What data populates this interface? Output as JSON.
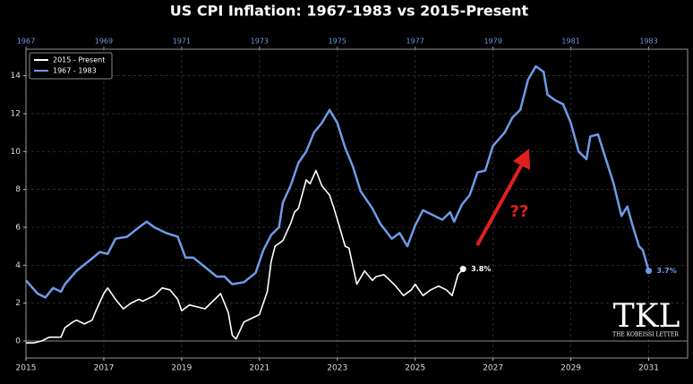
{
  "chart_data": {
    "type": "line",
    "title": "US CPI Inflation: 1967-1983 vs 2015-Present",
    "xlim": [
      2015,
      2032
    ],
    "xticks": [
      2015,
      2017,
      2019,
      2021,
      2023,
      2025,
      2027,
      2029,
      2031
    ],
    "x2lim": [
      1967,
      1984
    ],
    "x2ticks": [
      1967,
      1969,
      1971,
      1973,
      1975,
      1977,
      1979,
      1981,
      1983
    ],
    "ylim": [
      -0.9,
      15.4
    ],
    "yticks": [
      0,
      2,
      4,
      6,
      8,
      10,
      12,
      14
    ],
    "grid": true,
    "hline": 0,
    "legend": "upper left",
    "series": [
      {
        "name": "2015 - Present",
        "color": "#ffffff",
        "axis": "x",
        "end_label": "3.8%",
        "x": [
          2015.0,
          2015.2,
          2015.4,
          2015.6,
          2015.9,
          2016.0,
          2016.2,
          2016.3,
          2016.5,
          2016.7,
          2016.8,
          2017.0,
          2017.1,
          2017.3,
          2017.5,
          2017.7,
          2017.9,
          2018.0,
          2018.3,
          2018.5,
          2018.7,
          2018.9,
          2019.0,
          2019.2,
          2019.4,
          2019.6,
          2019.8,
          2020.0,
          2020.2,
          2020.3,
          2020.4,
          2020.6,
          2020.8,
          2021.0,
          2021.2,
          2021.3,
          2021.4,
          2021.6,
          2021.8,
          2021.9,
          2022.0,
          2022.2,
          2022.3,
          2022.45,
          2022.6,
          2022.8,
          2022.9,
          2023.0,
          2023.2,
          2023.3,
          2023.5,
          2023.7,
          2023.9,
          2024.0,
          2024.2,
          2024.3,
          2024.5,
          2024.7,
          2024.9,
          2025.0,
          2025.2,
          2025.4,
          2025.6,
          2025.8,
          2025.95,
          2026.1,
          2026.23
        ],
        "values": [
          -0.1,
          -0.1,
          0.0,
          0.2,
          0.2,
          0.7,
          1.0,
          1.1,
          0.9,
          1.1,
          1.6,
          2.5,
          2.8,
          2.2,
          1.7,
          2.0,
          2.2,
          2.1,
          2.4,
          2.8,
          2.7,
          2.2,
          1.6,
          1.9,
          1.8,
          1.7,
          2.1,
          2.5,
          1.5,
          0.3,
          0.1,
          1.0,
          1.2,
          1.4,
          2.6,
          4.2,
          5.0,
          5.3,
          6.2,
          6.8,
          7.0,
          8.5,
          8.3,
          9.0,
          8.2,
          7.7,
          7.1,
          6.4,
          5.0,
          4.9,
          3.0,
          3.7,
          3.2,
          3.4,
          3.5,
          3.3,
          2.9,
          2.4,
          2.7,
          3.0,
          2.4,
          2.7,
          2.9,
          2.7,
          2.4,
          3.5,
          3.8
        ]
      },
      {
        "name": "1967 - 1983",
        "color": "#6f9be6",
        "axis": "x2",
        "end_label": "3.7%",
        "x": [
          1967.0,
          1967.3,
          1967.5,
          1967.7,
          1967.9,
          1968.0,
          1968.3,
          1968.6,
          1968.9,
          1969.1,
          1969.3,
          1969.6,
          1969.9,
          1970.1,
          1970.3,
          1970.6,
          1970.9,
          1971.1,
          1971.3,
          1971.6,
          1971.9,
          1972.1,
          1972.3,
          1972.6,
          1972.9,
          1973.1,
          1973.3,
          1973.5,
          1973.6,
          1973.8,
          1974.0,
          1974.2,
          1974.4,
          1974.6,
          1974.8,
          1975.0,
          1975.2,
          1975.4,
          1975.6,
          1975.9,
          1976.1,
          1976.4,
          1976.6,
          1976.8,
          1977.0,
          1977.2,
          1977.4,
          1977.7,
          1977.9,
          1978.0,
          1978.2,
          1978.4,
          1978.6,
          1978.8,
          1979.0,
          1979.3,
          1979.5,
          1979.7,
          1979.9,
          1980.1,
          1980.3,
          1980.4,
          1980.6,
          1980.8,
          1981.0,
          1981.2,
          1981.4,
          1981.5,
          1981.7,
          1981.9,
          1982.1,
          1982.3,
          1982.45,
          1982.6,
          1982.75,
          1982.85,
          1983.0
        ],
        "values": [
          3.2,
          2.5,
          2.3,
          2.8,
          2.6,
          3.0,
          3.7,
          4.2,
          4.7,
          4.6,
          5.4,
          5.5,
          6.0,
          6.3,
          6.0,
          5.7,
          5.5,
          4.4,
          4.4,
          3.9,
          3.4,
          3.4,
          3.0,
          3.1,
          3.6,
          4.8,
          5.6,
          6.0,
          7.3,
          8.2,
          9.4,
          10.0,
          11.0,
          11.5,
          12.2,
          11.5,
          10.2,
          9.2,
          7.9,
          7.0,
          6.2,
          5.4,
          5.7,
          5.0,
          6.1,
          6.9,
          6.7,
          6.4,
          6.8,
          6.3,
          7.2,
          7.7,
          8.9,
          9.0,
          10.3,
          11.0,
          11.8,
          12.2,
          13.8,
          14.5,
          14.2,
          13.0,
          12.7,
          12.5,
          11.5,
          10.0,
          9.6,
          10.8,
          10.9,
          9.6,
          8.3,
          6.6,
          7.1,
          6.0,
          5.0,
          4.8,
          3.7
        ]
      }
    ],
    "annotation": "??",
    "logo": "TKL",
    "logo_caption": "THE KOBEISSI LETTER"
  }
}
